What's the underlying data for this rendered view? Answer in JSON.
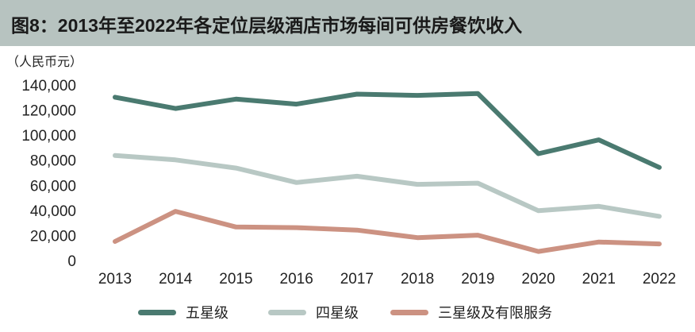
{
  "header": {
    "title": "图8：2013年至2022年各定位层级酒店市场每间可供房餐饮收入"
  },
  "chart_data": {
    "type": "line",
    "title": "图8：2013年至2022年各定位层级酒店市场每间可供房餐饮收入",
    "unit": "（人民币元）",
    "ylabel": "",
    "xlabel": "",
    "ylim": [
      0,
      140000
    ],
    "yticks": [
      0,
      20000,
      40000,
      60000,
      80000,
      100000,
      120000,
      140000
    ],
    "ytick_labels": [
      "0",
      "20,000",
      "40,000",
      "60,000",
      "80,000",
      "100,000",
      "120,000",
      "140,000"
    ],
    "categories": [
      "2013",
      "2014",
      "2015",
      "2016",
      "2017",
      "2018",
      "2019",
      "2020",
      "2021",
      "2022"
    ],
    "grid": false,
    "legend_position": "bottom",
    "series": [
      {
        "name": "五星级",
        "color": "#4a7a70",
        "values": [
          131500,
          122500,
          130000,
          126000,
          134000,
          133000,
          134500,
          86500,
          97500,
          75500
        ]
      },
      {
        "name": "四星级",
        "color": "#b8c8c4",
        "values": [
          85000,
          81500,
          75000,
          63500,
          68500,
          62000,
          63000,
          41000,
          44500,
          36500
        ]
      },
      {
        "name": "三星级及有限服务",
        "color": "#cc9282",
        "values": [
          16500,
          40500,
          28000,
          27500,
          25500,
          19500,
          21500,
          8500,
          16000,
          14500
        ]
      }
    ]
  }
}
